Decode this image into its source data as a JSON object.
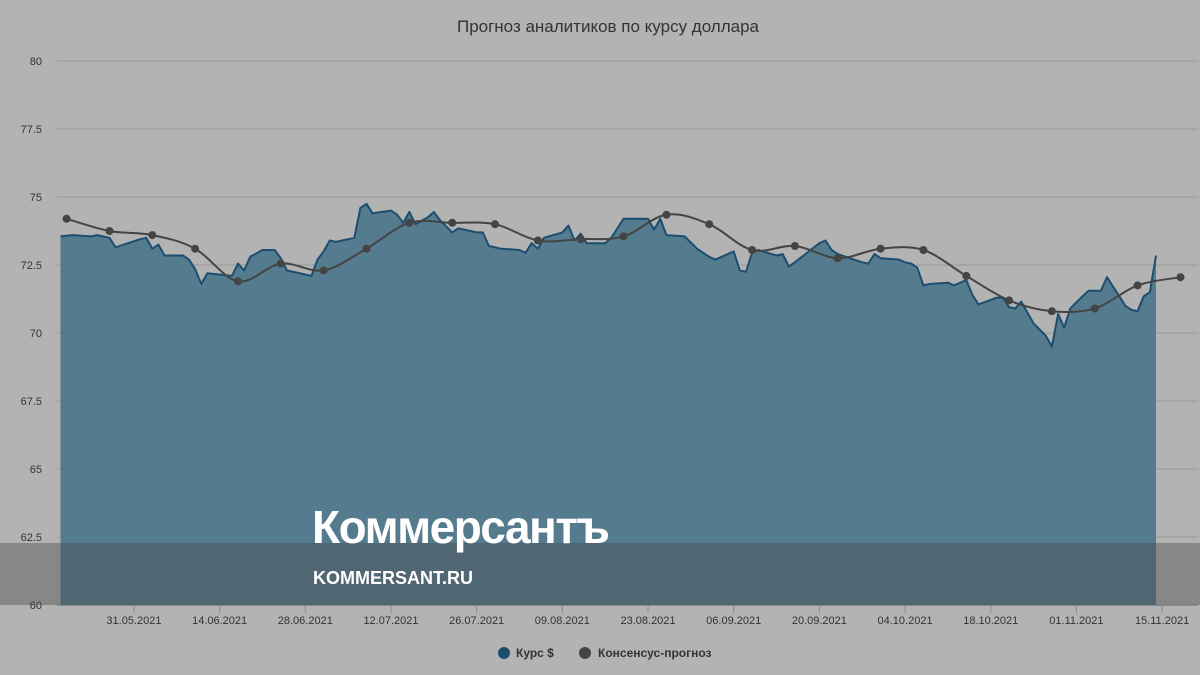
{
  "chart_data": {
    "type": "area",
    "title": "Прогноз аналитиков по курсу доллара",
    "ylim": [
      60,
      80
    ],
    "y_ticks": [
      "80",
      "77.5",
      "75",
      "72.5",
      "70",
      "67.5",
      "65",
      "62.5",
      "60"
    ],
    "x_ticks": [
      "31.05.2021",
      "14.06.2021",
      "28.06.2021",
      "12.07.2021",
      "26.07.2021",
      "09.08.2021",
      "23.08.2021",
      "06.09.2021",
      "20.09.2021",
      "04.10.2021",
      "18.10.2021",
      "01.11.2021",
      "15.11.2021"
    ],
    "x_start": "2021-05-19",
    "grid": true,
    "legend_position": "bottom",
    "series": [
      {
        "name": "Курс $",
        "type": "area",
        "color": "#1c4e70",
        "points": [
          [
            "2021-05-19",
            73.55
          ],
          [
            "2021-05-21",
            73.6
          ],
          [
            "2021-05-24",
            73.55
          ],
          [
            "2021-05-25",
            73.6
          ],
          [
            "2021-05-27",
            73.5
          ],
          [
            "2021-05-28",
            73.15
          ],
          [
            "2021-06-01",
            73.45
          ],
          [
            "2021-06-02",
            73.5
          ],
          [
            "2021-06-03",
            73.1
          ],
          [
            "2021-06-04",
            73.25
          ],
          [
            "2021-06-05",
            72.85
          ],
          [
            "2021-06-08",
            72.85
          ],
          [
            "2021-06-09",
            72.7
          ],
          [
            "2021-06-10",
            72.35
          ],
          [
            "2021-06-11",
            71.8
          ],
          [
            "2021-06-12",
            72.2
          ],
          [
            "2021-06-16",
            72.1
          ],
          [
            "2021-06-17",
            72.55
          ],
          [
            "2021-06-18",
            72.3
          ],
          [
            "2021-06-19",
            72.8
          ],
          [
            "2021-06-21",
            73.05
          ],
          [
            "2021-06-23",
            73.05
          ],
          [
            "2021-06-24",
            72.75
          ],
          [
            "2021-06-25",
            72.3
          ],
          [
            "2021-06-28",
            72.15
          ],
          [
            "2021-06-29",
            72.1
          ],
          [
            "2021-06-30",
            72.7
          ],
          [
            "2021-07-01",
            73.0
          ],
          [
            "2021-07-02",
            73.4
          ],
          [
            "2021-07-03",
            73.35
          ],
          [
            "2021-07-06",
            73.5
          ],
          [
            "2021-07-07",
            74.6
          ],
          [
            "2021-07-08",
            74.75
          ],
          [
            "2021-07-09",
            74.4
          ],
          [
            "2021-07-12",
            74.5
          ],
          [
            "2021-07-13",
            74.35
          ],
          [
            "2021-07-14",
            74.05
          ],
          [
            "2021-07-15",
            74.45
          ],
          [
            "2021-07-16",
            74.0
          ],
          [
            "2021-07-18",
            74.25
          ],
          [
            "2021-07-19",
            74.45
          ],
          [
            "2021-07-20",
            74.15
          ],
          [
            "2021-07-22",
            73.7
          ],
          [
            "2021-07-23",
            73.85
          ],
          [
            "2021-07-26",
            73.7
          ],
          [
            "2021-07-27",
            73.7
          ],
          [
            "2021-07-28",
            73.2
          ],
          [
            "2021-07-30",
            73.1
          ],
          [
            "2021-08-02",
            73.05
          ],
          [
            "2021-08-03",
            72.95
          ],
          [
            "2021-08-04",
            73.3
          ],
          [
            "2021-08-05",
            73.1
          ],
          [
            "2021-08-06",
            73.5
          ],
          [
            "2021-08-09",
            73.7
          ],
          [
            "2021-08-10",
            73.95
          ],
          [
            "2021-08-11",
            73.4
          ],
          [
            "2021-08-12",
            73.65
          ],
          [
            "2021-08-13",
            73.3
          ],
          [
            "2021-08-16",
            73.3
          ],
          [
            "2021-08-17",
            73.5
          ],
          [
            "2021-08-19",
            74.2
          ],
          [
            "2021-08-23",
            74.2
          ],
          [
            "2021-08-24",
            73.8
          ],
          [
            "2021-08-25",
            74.2
          ],
          [
            "2021-08-26",
            73.6
          ],
          [
            "2021-08-29",
            73.55
          ],
          [
            "2021-08-31",
            73.1
          ],
          [
            "2021-09-02",
            72.8
          ],
          [
            "2021-09-03",
            72.7
          ],
          [
            "2021-09-06",
            73.0
          ],
          [
            "2021-09-07",
            72.3
          ],
          [
            "2021-09-08",
            72.25
          ],
          [
            "2021-09-09",
            72.95
          ],
          [
            "2021-09-10",
            73.05
          ],
          [
            "2021-09-13",
            72.85
          ],
          [
            "2021-09-14",
            72.9
          ],
          [
            "2021-09-15",
            72.45
          ],
          [
            "2021-09-16",
            72.6
          ],
          [
            "2021-09-20",
            73.3
          ],
          [
            "2021-09-21",
            73.4
          ],
          [
            "2021-09-22",
            73.05
          ],
          [
            "2021-09-23",
            72.9
          ],
          [
            "2021-09-27",
            72.6
          ],
          [
            "2021-09-28",
            72.55
          ],
          [
            "2021-09-29",
            72.9
          ],
          [
            "2021-09-30",
            72.75
          ],
          [
            "2021-10-03",
            72.7
          ],
          [
            "2021-10-04",
            72.6
          ],
          [
            "2021-10-05",
            72.55
          ],
          [
            "2021-10-06",
            72.4
          ],
          [
            "2021-10-07",
            71.75
          ],
          [
            "2021-10-08",
            71.8
          ],
          [
            "2021-10-11",
            71.85
          ],
          [
            "2021-10-12",
            71.75
          ],
          [
            "2021-10-14",
            71.95
          ],
          [
            "2021-10-15",
            71.4
          ],
          [
            "2021-10-16",
            71.05
          ],
          [
            "2021-10-19",
            71.3
          ],
          [
            "2021-10-20",
            71.3
          ],
          [
            "2021-10-21",
            70.95
          ],
          [
            "2021-10-22",
            70.9
          ],
          [
            "2021-10-23",
            71.15
          ],
          [
            "2021-10-25",
            70.35
          ],
          [
            "2021-10-27",
            69.9
          ],
          [
            "2021-10-28",
            69.5
          ],
          [
            "2021-10-29",
            70.7
          ],
          [
            "2021-10-30",
            70.2
          ],
          [
            "2021-10-31",
            70.9
          ],
          [
            "2021-11-02",
            71.35
          ],
          [
            "2021-11-03",
            71.55
          ],
          [
            "2021-11-05",
            71.55
          ],
          [
            "2021-11-06",
            72.05
          ],
          [
            "2021-11-08",
            71.35
          ],
          [
            "2021-11-09",
            71.0
          ],
          [
            "2021-11-10",
            70.85
          ],
          [
            "2021-11-11",
            70.8
          ],
          [
            "2021-11-12",
            71.35
          ],
          [
            "2021-11-13",
            71.5
          ],
          [
            "2021-11-14",
            72.85
          ]
        ]
      },
      {
        "name": "Консенсус-прогноз",
        "type": "line",
        "color": "#444444",
        "points": [
          [
            "2021-05-20",
            74.2
          ],
          [
            "2021-05-27",
            73.75
          ],
          [
            "2021-06-03",
            73.6
          ],
          [
            "2021-06-10",
            73.1
          ],
          [
            "2021-06-17",
            71.9
          ],
          [
            "2021-06-24",
            72.55
          ],
          [
            "2021-07-01",
            72.3
          ],
          [
            "2021-07-08",
            73.1
          ],
          [
            "2021-07-15",
            74.05
          ],
          [
            "2021-07-22",
            74.05
          ],
          [
            "2021-07-29",
            74.0
          ],
          [
            "2021-08-05",
            73.4
          ],
          [
            "2021-08-12",
            73.45
          ],
          [
            "2021-08-19",
            73.55
          ],
          [
            "2021-08-26",
            74.35
          ],
          [
            "2021-09-02",
            74.0
          ],
          [
            "2021-09-09",
            73.05
          ],
          [
            "2021-09-16",
            73.2
          ],
          [
            "2021-09-23",
            72.75
          ],
          [
            "2021-09-30",
            73.1
          ],
          [
            "2021-10-07",
            73.05
          ],
          [
            "2021-10-14",
            72.1
          ],
          [
            "2021-10-21",
            71.2
          ],
          [
            "2021-10-28",
            70.8
          ],
          [
            "2021-11-04",
            70.9
          ],
          [
            "2021-11-11",
            71.75
          ],
          [
            "2021-11-18",
            72.05
          ]
        ]
      }
    ]
  },
  "watermark": {
    "brand": "Коммерсантъ",
    "site": "KOMMERSANT.RU"
  },
  "colors": {
    "background": "#b3b3b3",
    "area_fill": "#557b8f",
    "area_line": "#1c4e70",
    "consensus": "#444444"
  }
}
